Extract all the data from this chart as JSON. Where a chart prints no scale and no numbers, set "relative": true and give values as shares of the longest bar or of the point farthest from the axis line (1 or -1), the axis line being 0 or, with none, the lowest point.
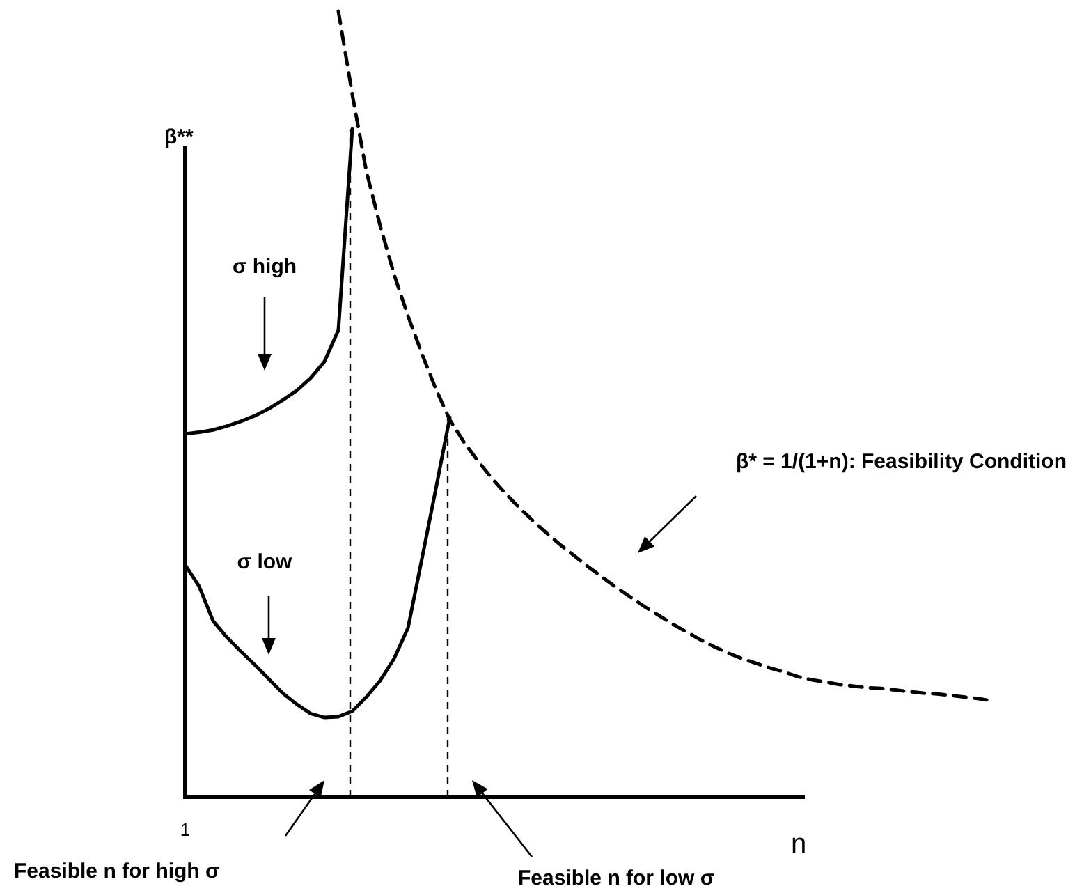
{
  "chart_data": {
    "type": "line",
    "relative": true,
    "ylabel": "β**",
    "xlabel": "n",
    "categories": [
      null,
      null,
      null,
      null,
      null,
      null,
      null,
      null,
      null,
      null,
      null,
      null,
      null,
      null,
      null,
      null,
      null,
      null,
      null,
      null,
      null,
      null,
      null,
      null,
      null,
      null,
      null,
      null,
      null,
      null,
      null,
      null,
      null,
      null,
      null,
      null,
      null,
      null,
      null,
      null,
      null,
      null,
      null,
      null,
      null,
      null,
      null,
      null,
      null,
      null,
      null,
      null,
      null,
      null,
      null,
      null,
      null,
      null,
      null
    ],
    "series": [
      {
        "color": "#000000",
        "line_style": "solid",
        "values": [
          0.462,
          0.464,
          0.467,
          0.472,
          0.478,
          0.485,
          0.494,
          0.505,
          0.517,
          0.533,
          0.554,
          0.594,
          0.85,
          null,
          null,
          null,
          null,
          null,
          null,
          null,
          null,
          null,
          null,
          null,
          null,
          null,
          null,
          null,
          null,
          null,
          null,
          null,
          null,
          null,
          null,
          null,
          null,
          null,
          null,
          null,
          null,
          null,
          null,
          null,
          null,
          null,
          null,
          null,
          null,
          null,
          null,
          null,
          null,
          null,
          null,
          null,
          null,
          null,
          null
        ]
      },
      {
        "color": "#000000",
        "line_style": "solid",
        "values": [
          0.295,
          0.268,
          0.224,
          0.203,
          0.185,
          0.168,
          0.15,
          0.132,
          0.118,
          0.106,
          0.101,
          0.102,
          0.109,
          0.127,
          0.148,
          0.176,
          0.215,
          0.303,
          0.392,
          0.483,
          null,
          null,
          null,
          null,
          null,
          null,
          null,
          null,
          null,
          null,
          null,
          null,
          null,
          null,
          null,
          null,
          null,
          null,
          null,
          null,
          null,
          null,
          null,
          null,
          null,
          null,
          null,
          null,
          null,
          null,
          null,
          null,
          null,
          null,
          null,
          null,
          null,
          null,
          null
        ]
      },
      {
        "color": "#000000",
        "line_style": "dashed",
        "values": [
          null,
          null,
          null,
          null,
          null,
          null,
          null,
          null,
          null,
          null,
          null,
          1.0,
          0.894,
          0.797,
          0.727,
          0.665,
          0.612,
          0.564,
          0.519,
          0.48,
          0.452,
          0.428,
          0.406,
          0.386,
          0.368,
          0.351,
          0.335,
          0.32,
          0.306,
          0.292,
          0.279,
          0.266,
          0.254,
          0.242,
          0.231,
          0.22,
          0.21,
          0.2,
          0.191,
          0.183,
          0.176,
          0.17,
          0.164,
          0.159,
          0.153,
          0.149,
          0.146,
          0.143,
          0.141,
          0.139,
          0.138,
          0.136,
          0.134,
          0.132,
          0.131,
          0.129,
          0.127,
          0.125,
          0.122
        ]
      }
    ],
    "annotations": [
      "1",
      "σ high",
      "σ low",
      "β* = 1/(1+n): Feasibility Condition",
      "Feasible n for high σ",
      "Feasible n for low σ"
    ]
  }
}
